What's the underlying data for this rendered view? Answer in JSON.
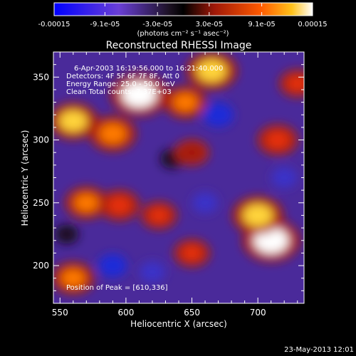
{
  "chart_data": {
    "type": "heatmap",
    "title": "Reconstructed RHESSI Image",
    "xlabel": "Heliocentric X (arcsec)",
    "ylabel": "Heliocentric Y (arcsec)",
    "xlim": [
      545,
      735
    ],
    "ylim": [
      170,
      370
    ],
    "xticks": [
      550,
      600,
      650,
      700
    ],
    "yticks": [
      200,
      250,
      300,
      350
    ],
    "xtick_labels": [
      "550",
      "600",
      "650",
      "700"
    ],
    "ytick_labels": [
      "200",
      "250",
      "300",
      "350"
    ],
    "colorbar": {
      "range": [
        -0.00015,
        0.00015
      ],
      "tick_values": [
        -0.00015,
        -9.1e-05,
        -3e-05,
        3e-05,
        9.1e-05,
        0.00015
      ],
      "tick_labels": [
        "-0.00015",
        "-9.1e-05",
        "-3.0e-05",
        "3.0e-05",
        "9.1e-05",
        "0.00015"
      ],
      "unit_label": "(photons cm⁻² s⁻¹ asec⁻²)"
    },
    "annotations": [
      "6-Apr-2003 16:19:56.000 to 16:21:40.000",
      "Detectors: 4F 5F 6F 7F 8F, Att 0",
      "Energy Range: 25.0 - 50.0 keV",
      "Clean    Total counts: 7.37E+03"
    ],
    "peak_label": "Position of Peak = [610,336]",
    "peak": [
      610,
      336
    ],
    "bright_regions": [
      {
        "x": 710,
        "y": 220,
        "value": 0.00015
      },
      {
        "x": 700,
        "y": 240,
        "value": 0.00012
      },
      {
        "x": 560,
        "y": 315,
        "value": 0.00011
      },
      {
        "x": 590,
        "y": 305,
        "value": 0.0001
      },
      {
        "x": 610,
        "y": 336,
        "value": 0.00015
      },
      {
        "x": 665,
        "y": 355,
        "value": 0.00012
      },
      {
        "x": 645,
        "y": 330,
        "value": 8e-05
      },
      {
        "x": 570,
        "y": 250,
        "value": 8e-05
      },
      {
        "x": 595,
        "y": 248,
        "value": 7e-05
      },
      {
        "x": 625,
        "y": 240,
        "value": 5e-05
      },
      {
        "x": 560,
        "y": 190,
        "value": 8e-05
      },
      {
        "x": 650,
        "y": 210,
        "value": 5e-05
      },
      {
        "x": 715,
        "y": 300,
        "value": 7e-05
      },
      {
        "x": 730,
        "y": 345,
        "value": 5e-05
      },
      {
        "x": 650,
        "y": 290,
        "value": 4e-05
      }
    ],
    "dark_regions": [
      {
        "x": 670,
        "y": 320,
        "value": -8e-05
      },
      {
        "x": 590,
        "y": 200,
        "value": -7e-05
      },
      {
        "x": 620,
        "y": 195,
        "value": -5e-05
      },
      {
        "x": 720,
        "y": 270,
        "value": -5e-05
      },
      {
        "x": 660,
        "y": 250,
        "value": -5e-05
      },
      {
        "x": 555,
        "y": 225,
        "value": -4e-05
      },
      {
        "x": 635,
        "y": 285,
        "value": -4e-05
      }
    ]
  },
  "footer": {
    "timestamp": "23-May-2013 12:01"
  }
}
